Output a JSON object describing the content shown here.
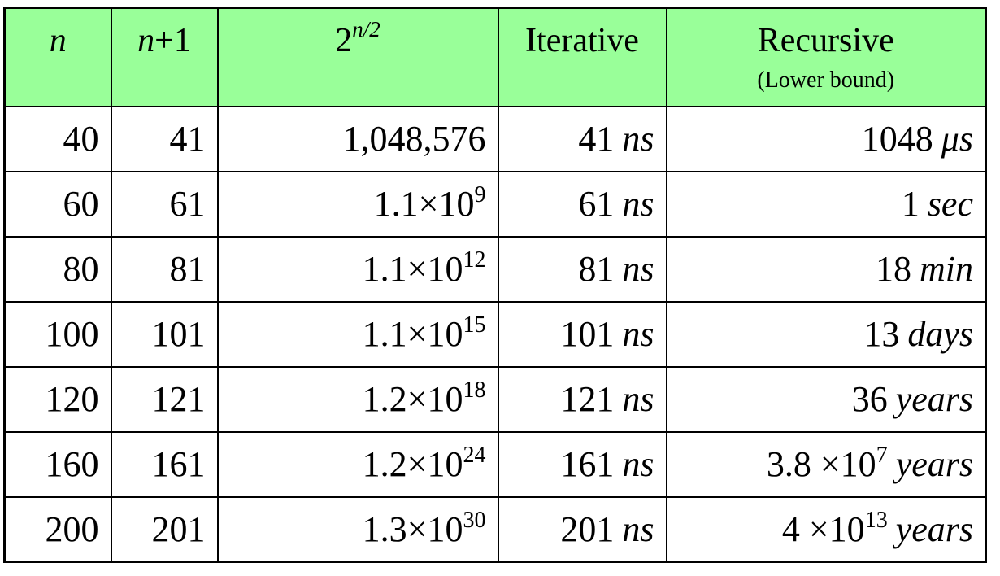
{
  "header": {
    "n": "n",
    "n_plus_1_var": "n",
    "n_plus_1_rest": "+1",
    "pow_base": "2",
    "pow_exp": "n/2",
    "iterative": "Iterative",
    "recursive": "Recursive",
    "recursive_note": "(Lower bound)"
  },
  "rows": [
    {
      "n": "40",
      "n1": "41",
      "pow_mant": "1,048,576",
      "pow_exp": "",
      "iter_val": "41",
      "iter_unit": "ns",
      "rec_val": "1048",
      "rec_exp": "",
      "rec_unit": "μs"
    },
    {
      "n": "60",
      "n1": "61",
      "pow_mant": "1.1×10",
      "pow_exp": "9",
      "iter_val": "61",
      "iter_unit": "ns",
      "rec_val": "1",
      "rec_exp": "",
      "rec_unit": "sec"
    },
    {
      "n": "80",
      "n1": "81",
      "pow_mant": "1.1×10",
      "pow_exp": "12",
      "iter_val": "81",
      "iter_unit": "ns",
      "rec_val": "18",
      "rec_exp": "",
      "rec_unit": "min"
    },
    {
      "n": "100",
      "n1": "101",
      "pow_mant": "1.1×10",
      "pow_exp": "15",
      "iter_val": "101",
      "iter_unit": "ns",
      "rec_val": "13",
      "rec_exp": "",
      "rec_unit": "days"
    },
    {
      "n": "120",
      "n1": "121",
      "pow_mant": "1.2×10",
      "pow_exp": "18",
      "iter_val": "121",
      "iter_unit": "ns",
      "rec_val": "36",
      "rec_exp": "",
      "rec_unit": "years"
    },
    {
      "n": "160",
      "n1": "161",
      "pow_mant": "1.2×10",
      "pow_exp": "24",
      "iter_val": "161",
      "iter_unit": "ns",
      "rec_val": "3.8 ×10",
      "rec_exp": "7",
      "rec_unit": "years"
    },
    {
      "n": "200",
      "n1": "201",
      "pow_mant": "1.3×10",
      "pow_exp": "30",
      "iter_val": "201",
      "iter_unit": "ns",
      "rec_val": "4 ×10",
      "rec_exp": "13",
      "rec_unit": "years"
    }
  ],
  "colors": {
    "header_bg": "#99ff99",
    "border": "#000000",
    "background": "#ffffff"
  }
}
